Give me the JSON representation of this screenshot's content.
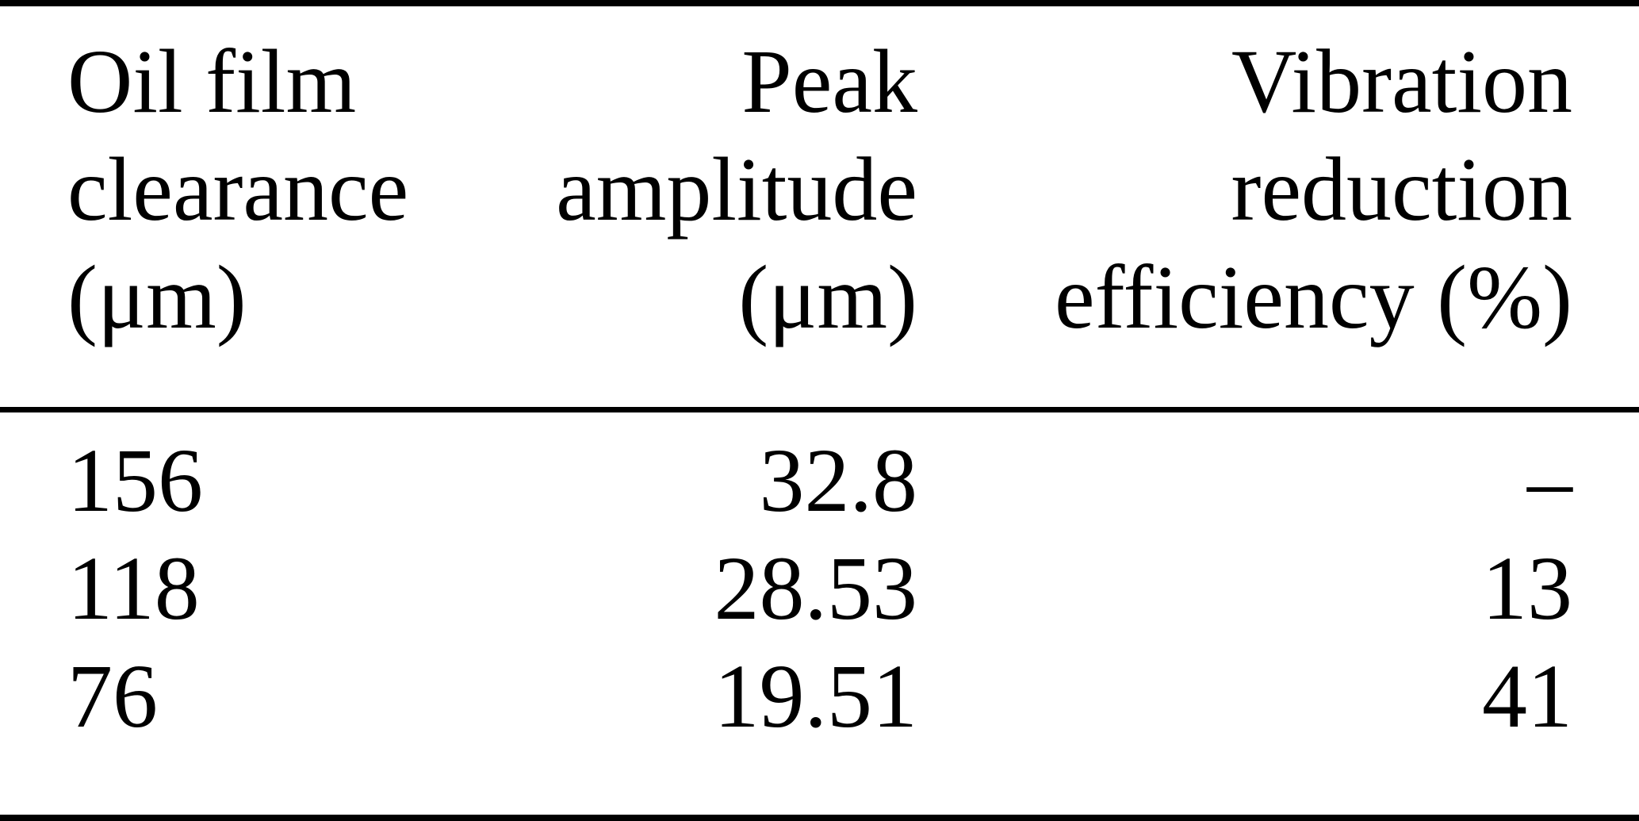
{
  "table": {
    "columns": [
      {
        "id": "oil-film-clearance",
        "lines": [
          "Oil film",
          "clearance",
          "(μm)"
        ],
        "align": "left"
      },
      {
        "id": "peak-amplitude",
        "lines": [
          "Peak",
          "amplitude",
          "(μm)"
        ],
        "align": "right"
      },
      {
        "id": "vibration-reduction-efficiency",
        "lines": [
          "Vibration",
          "reduction",
          "efficiency (%)"
        ],
        "align": "right"
      }
    ],
    "rows": [
      [
        "156",
        "32.8",
        "–"
      ],
      [
        "118",
        "28.53",
        "13"
      ],
      [
        "76",
        "19.51",
        "41"
      ]
    ]
  },
  "colors": {
    "background": "#ffffff",
    "text": "#000000",
    "rule": "#000000"
  },
  "chart_data": {
    "type": "table",
    "columns": [
      "Oil film clearance (μm)",
      "Peak amplitude (μm)",
      "Vibration reduction efficiency (%)"
    ],
    "rows": [
      [
        "156",
        "32.8",
        "–"
      ],
      [
        "118",
        "28.53",
        "13"
      ],
      [
        "76",
        "19.51",
        "41"
      ]
    ],
    "values": {
      "oil_film_clearance_um": [
        156,
        118,
        76
      ],
      "peak_amplitude_um": [
        32.8,
        28.53,
        19.51
      ],
      "vibration_reduction_efficiency_pct": [
        null,
        13,
        41
      ]
    }
  }
}
